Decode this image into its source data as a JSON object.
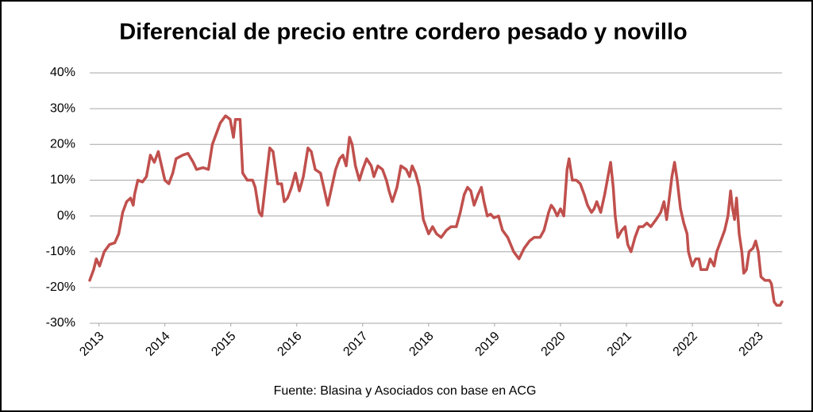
{
  "chart_data": {
    "type": "line",
    "title": "Diferencial de precio entre cordero pesado y novillo",
    "source": "Fuente: Blasina y Asociados con base en ACG",
    "xlim": [
      2012.86,
      2023.36
    ],
    "xticks": [
      2013,
      2014,
      2015,
      2016,
      2017,
      2018,
      2019,
      2020,
      2021,
      2022,
      2023
    ],
    "ylim": [
      -30,
      40
    ],
    "yticks": [
      {
        "value": -30,
        "label": "-30%"
      },
      {
        "value": -20,
        "label": "-20%"
      },
      {
        "value": -10,
        "label": "-10%"
      },
      {
        "value": 0,
        "label": "0%"
      },
      {
        "value": 10,
        "label": "10%"
      },
      {
        "value": 20,
        "label": "20%"
      },
      {
        "value": 30,
        "label": "30%"
      },
      {
        "value": 40,
        "label": "40%"
      }
    ],
    "grid": true,
    "series": [
      {
        "color": "#c0504d",
        "x": [
          2012.86,
          2012.92,
          2012.96,
          2013.01,
          2013.08,
          2013.16,
          2013.24,
          2013.3,
          2013.33,
          2013.36,
          2013.42,
          2013.48,
          2013.52,
          2013.54,
          2013.59,
          2013.66,
          2013.72,
          2013.78,
          2013.84,
          2013.9,
          2013.95,
          2014.0,
          2014.06,
          2014.12,
          2014.17,
          2014.27,
          2014.35,
          2014.43,
          2014.48,
          2014.58,
          2014.66,
          2014.72,
          2014.78,
          2014.84,
          2014.92,
          2014.99,
          2015.04,
          2015.07,
          2015.14,
          2015.18,
          2015.25,
          2015.33,
          2015.37,
          2015.43,
          2015.47,
          2015.52,
          2015.59,
          2015.64,
          2015.71,
          2015.77,
          2015.81,
          2015.86,
          2015.92,
          2015.98,
          2016.04,
          2016.1,
          2016.17,
          2016.22,
          2016.28,
          2016.36,
          2016.41,
          2016.47,
          2016.53,
          2016.59,
          2016.65,
          2016.7,
          2016.75,
          2016.8,
          2016.84,
          2016.89,
          2016.95,
          2017.0,
          2017.06,
          2017.13,
          2017.17,
          2017.23,
          2017.3,
          2017.36,
          2017.4,
          2017.45,
          2017.52,
          2017.58,
          2017.66,
          2017.71,
          2017.75,
          2017.8,
          2017.86,
          2017.92,
          2018.0,
          2018.06,
          2018.12,
          2018.19,
          2018.27,
          2018.34,
          2018.42,
          2018.48,
          2018.54,
          2018.59,
          2018.64,
          2018.69,
          2018.75,
          2018.8,
          2018.84,
          2018.89,
          2018.94,
          2018.99,
          2019.06,
          2019.12,
          2019.2,
          2019.29,
          2019.37,
          2019.45,
          2019.53,
          2019.6,
          2019.69,
          2019.75,
          2019.82,
          2019.86,
          2019.9,
          2019.95,
          2020.0,
          2020.05,
          2020.1,
          2020.13,
          2020.18,
          2020.24,
          2020.3,
          2020.36,
          2020.41,
          2020.47,
          2020.51,
          2020.55,
          2020.61,
          2020.67,
          2020.72,
          2020.76,
          2020.8,
          2020.83,
          2020.87,
          2020.93,
          2020.98,
          2021.02,
          2021.07,
          2021.13,
          2021.19,
          2021.25,
          2021.31,
          2021.37,
          2021.45,
          2021.52,
          2021.57,
          2021.61,
          2021.65,
          2021.69,
          2021.73,
          2021.77,
          2021.82,
          2021.87,
          2021.92,
          2021.94,
          2022.0,
          2022.05,
          2022.1,
          2022.13,
          2022.22,
          2022.27,
          2022.33,
          2022.37,
          2022.43,
          2022.49,
          2022.54,
          2022.58,
          2022.61,
          2022.64,
          2022.67,
          2022.71,
          2022.75,
          2022.78,
          2022.82,
          2022.86,
          2022.92,
          2022.96,
          2023.0,
          2023.04,
          2023.1,
          2023.17,
          2023.2,
          2023.24,
          2023.28,
          2023.33,
          2023.36
        ],
        "values": [
          -18,
          -15,
          -12,
          -14,
          -10,
          -8,
          -7.5,
          -5,
          -2,
          1,
          4,
          5,
          3,
          6,
          10,
          9.5,
          11,
          17,
          15,
          18,
          14,
          10,
          9,
          12,
          16,
          17,
          17.5,
          15,
          13,
          13.5,
          13,
          20,
          23,
          26,
          28,
          27,
          22,
          27,
          27,
          12,
          10,
          10,
          8,
          1,
          0,
          8,
          19,
          18,
          9,
          9,
          4,
          5,
          8,
          12,
          7,
          11,
          19,
          18,
          13,
          12,
          8,
          3,
          8,
          13,
          16,
          17,
          14,
          22,
          20,
          14,
          10,
          13,
          16,
          14,
          11,
          14,
          13,
          10,
          7,
          4,
          8,
          14,
          13,
          11,
          14,
          12,
          8,
          -1,
          -5,
          -3,
          -5,
          -6,
          -4,
          -3,
          -3,
          1,
          6,
          8,
          7,
          3,
          6,
          8,
          4,
          0,
          0.5,
          -0.5,
          0,
          -4,
          -6,
          -10,
          -12,
          -9,
          -7,
          -6,
          -6,
          -4,
          1,
          3,
          2,
          0,
          2,
          0,
          13,
          16,
          10,
          10,
          9,
          6,
          3,
          1,
          2,
          4,
          1,
          6,
          11,
          15,
          8,
          0,
          -6,
          -4,
          -3,
          -8,
          -10,
          -6,
          -3,
          -3,
          -2,
          -3,
          -1,
          1,
          4,
          -1,
          5,
          11,
          15,
          10,
          2,
          -2,
          -5,
          -10,
          -14,
          -12,
          -12,
          -15,
          -15,
          -12,
          -14,
          -10,
          -7,
          -4,
          0,
          7,
          2,
          -1,
          5,
          -5,
          -10,
          -16,
          -15,
          -10,
          -9,
          -7,
          -10,
          -17,
          -18,
          -18,
          -19,
          -24,
          -25,
          -25,
          -24
        ]
      }
    ]
  }
}
